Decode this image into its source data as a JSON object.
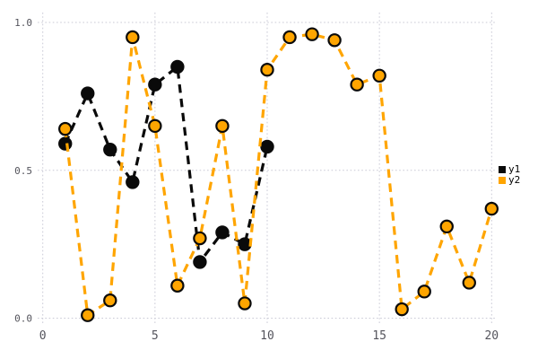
{
  "chart_data": {
    "type": "line",
    "title": "",
    "xlabel": "",
    "ylabel": "",
    "xlim": [
      0,
      20
    ],
    "ylim": [
      0.0,
      1.0
    ],
    "grid": true,
    "gridstyle": "dotted",
    "legend_position": "outside-right",
    "background_color": "#ffffff",
    "grid_color": "#cacad6",
    "tick_label_color": "#54545c",
    "line_style": "dashed",
    "marker": "circle",
    "xticks": [
      {
        "value": 0,
        "label": "0"
      },
      {
        "value": 5,
        "label": "5"
      },
      {
        "value": 10,
        "label": "10"
      },
      {
        "value": 15,
        "label": "15"
      },
      {
        "value": 20,
        "label": "20"
      }
    ],
    "yticks": [
      {
        "value": 0.0,
        "label": "0.0"
      },
      {
        "value": 0.5,
        "label": "0.5"
      },
      {
        "value": 1.0,
        "label": "1.0"
      }
    ],
    "series": [
      {
        "name": "y1",
        "color": "#0a0a0a",
        "marker_edge_color": "#0a0a0a",
        "x": [
          1,
          2,
          3,
          4,
          5,
          6,
          7,
          8,
          9,
          10
        ],
        "values": [
          0.59,
          0.76,
          0.57,
          0.46,
          0.79,
          0.85,
          0.19,
          0.29,
          0.25,
          0.58
        ]
      },
      {
        "name": "y2",
        "color": "#FFA500",
        "marker_edge_color": "#0a0a0a",
        "x": [
          1,
          2,
          3,
          4,
          5,
          6,
          7,
          8,
          9,
          10,
          11,
          12,
          13,
          14,
          15,
          16,
          17,
          18,
          19,
          20
        ],
        "values": [
          0.64,
          0.01,
          0.06,
          0.95,
          0.65,
          0.11,
          0.27,
          0.65,
          0.05,
          0.84,
          0.95,
          0.96,
          0.94,
          0.79,
          0.82,
          0.03,
          0.09,
          0.31,
          0.12,
          0.37
        ]
      }
    ]
  }
}
